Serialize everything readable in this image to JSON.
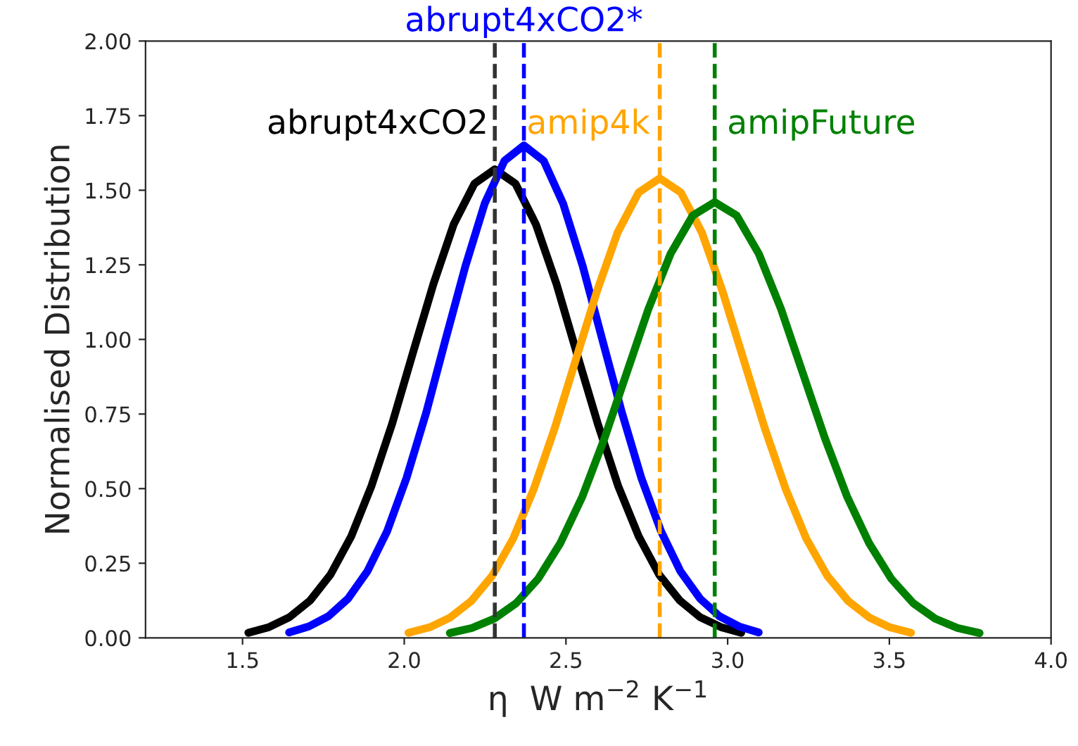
{
  "chart_data": {
    "type": "line",
    "xlabel": "η  W m$^{−2}$ K$^{−1}$",
    "ylabel": "Normalised Distribution",
    "xlim": [
      1.2,
      4.0
    ],
    "xticks": [
      {
        "value": 1.5,
        "label": "1.5"
      },
      {
        "value": 2.0,
        "label": "2.0"
      },
      {
        "value": 2.5,
        "label": "2.5"
      },
      {
        "value": 3.0,
        "label": "3.0"
      },
      {
        "value": 3.5,
        "label": "3.5"
      },
      {
        "value": 4.0,
        "label": "4.0"
      }
    ],
    "ylim": [
      0,
      2.0
    ],
    "yticks": [
      {
        "value": 0,
        "label": "0.00"
      },
      {
        "value": 0.25,
        "label": "0.25"
      },
      {
        "value": 0.5,
        "label": "0.50"
      },
      {
        "value": 0.75,
        "label": "0.75"
      },
      {
        "value": 1.0,
        "label": "1.00"
      },
      {
        "value": 1.25,
        "label": "1.25"
      },
      {
        "value": 1.5,
        "label": "1.50"
      },
      {
        "value": 1.75,
        "label": "1.75"
      },
      {
        "value": 2.0,
        "label": "2.00"
      }
    ],
    "grid": false,
    "legend": false,
    "marker": "none",
    "line_style": "solid",
    "series": [
      {
        "name": "abrupt4xCO2",
        "color": "#000000",
        "x": [
          1.518,
          1.582,
          1.645,
          1.709,
          1.772,
          1.836,
          1.899,
          1.963,
          2.026,
          2.09,
          2.153,
          2.217,
          2.28,
          2.344,
          2.407,
          2.471,
          2.534,
          2.598,
          2.661,
          2.725,
          2.788,
          2.852,
          2.915,
          2.979,
          3.042
        ],
        "values": [
          0.017,
          0.036,
          0.069,
          0.125,
          0.212,
          0.34,
          0.51,
          0.719,
          0.952,
          1.185,
          1.386,
          1.522,
          1.57,
          1.522,
          1.386,
          1.185,
          0.952,
          0.719,
          0.51,
          0.34,
          0.212,
          0.125,
          0.069,
          0.036,
          0.017
        ]
      },
      {
        "name": "abrupt4xCO2*",
        "color": "#0000ff",
        "x": [
          1.644,
          1.705,
          1.765,
          1.826,
          1.886,
          1.947,
          2.007,
          2.068,
          2.128,
          2.189,
          2.249,
          2.31,
          2.37,
          2.431,
          2.491,
          2.552,
          2.612,
          2.673,
          2.733,
          2.794,
          2.854,
          2.915,
          2.975,
          3.036,
          3.096
        ],
        "values": [
          0.018,
          0.038,
          0.072,
          0.131,
          0.223,
          0.357,
          0.536,
          0.755,
          1.001,
          1.245,
          1.456,
          1.599,
          1.65,
          1.599,
          1.456,
          1.245,
          1.001,
          0.755,
          0.536,
          0.357,
          0.223,
          0.131,
          0.072,
          0.038,
          0.018
        ]
      },
      {
        "name": "amip4k",
        "color": "#ffa500",
        "x": [
          2.013,
          2.078,
          2.142,
          2.207,
          2.272,
          2.337,
          2.401,
          2.466,
          2.531,
          2.596,
          2.66,
          2.725,
          2.79,
          2.855,
          2.92,
          2.984,
          3.049,
          3.114,
          3.179,
          3.243,
          3.308,
          3.373,
          3.438,
          3.502,
          3.567
        ],
        "values": [
          0.017,
          0.035,
          0.068,
          0.123,
          0.208,
          0.333,
          0.5,
          0.705,
          0.934,
          1.162,
          1.359,
          1.493,
          1.54,
          1.493,
          1.359,
          1.162,
          0.934,
          0.705,
          0.5,
          0.333,
          0.208,
          0.123,
          0.068,
          0.035,
          0.017
        ]
      },
      {
        "name": "amipFuture",
        "color": "#008000",
        "x": [
          2.141,
          2.209,
          2.278,
          2.346,
          2.414,
          2.482,
          2.551,
          2.619,
          2.687,
          2.755,
          2.824,
          2.892,
          2.96,
          3.028,
          3.096,
          3.165,
          3.233,
          3.301,
          3.369,
          3.438,
          3.506,
          3.574,
          3.642,
          3.711,
          3.779
        ],
        "values": [
          0.016,
          0.033,
          0.064,
          0.116,
          0.198,
          0.316,
          0.474,
          0.668,
          0.885,
          1.102,
          1.288,
          1.415,
          1.46,
          1.415,
          1.288,
          1.102,
          0.885,
          0.668,
          0.474,
          0.316,
          0.198,
          0.116,
          0.064,
          0.033,
          0.016
        ]
      }
    ],
    "ref_lines": [
      {
        "axis": "x",
        "value": 2.28,
        "color": "#333333",
        "line_style": "dashed"
      },
      {
        "axis": "x",
        "value": 2.37,
        "color": "#0000ff",
        "line_style": "dashed"
      },
      {
        "axis": "x",
        "value": 2.79,
        "color": "#ffa500",
        "line_style": "dashed"
      },
      {
        "axis": "x",
        "value": 2.96,
        "color": "#008000",
        "line_style": "dashed"
      }
    ]
  }
}
